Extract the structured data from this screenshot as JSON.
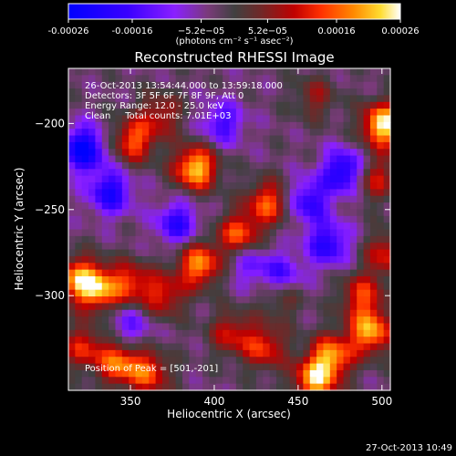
{
  "chart_data": {
    "type": "heatmap",
    "title": "Reconstructed RHESSI Image",
    "xlabel": "Heliocentric X (arcsec)",
    "ylabel": "Heliocentric Y (arcsec)",
    "xlim": [
      313,
      505
    ],
    "ylim": [
      -355,
      -168
    ],
    "x_ticks": [
      350,
      400,
      450,
      500
    ],
    "y_ticks": [
      -200,
      -250,
      -300
    ],
    "colorbar": {
      "range": [
        -0.00026,
        0.00026
      ],
      "tick_values": [
        -0.00026,
        -0.00016,
        -5.2e-05,
        5.2e-05,
        0.00016,
        0.00026
      ],
      "tick_labels": [
        "-0.00026",
        "-0.00016",
        "−5.2e−05",
        "5.2e−05",
        "0.00016",
        "0.00026"
      ],
      "unit_label": "(photons cm⁻² s⁻¹ asec⁻²)",
      "colors": [
        "#0000ff",
        "#3a00ff",
        "#8a20ff",
        "#7a3a7a",
        "#404040",
        "#702828",
        "#c00000",
        "#ff3000",
        "#ff8a00",
        "#ffdc30",
        "#ffffff"
      ]
    },
    "annotations": [
      "26-Oct-2013 13:54:44.000 to 13:59:18.000",
      "Detectors: 3F 5F 6F 7F 8F 9F, Att 0",
      "Energy Range: 12.0 - 25.0 keV",
      "Clean     Total counts: 7.01E+03"
    ],
    "peak_label": "Position of Peak = [501,-201]",
    "peak": {
      "x": 501,
      "y": -201
    },
    "hotspots": [
      {
        "x": 389,
        "y": -226,
        "v": 1.0
      },
      {
        "x": 391,
        "y": -282,
        "v": 0.85
      },
      {
        "x": 415,
        "y": -265,
        "v": 0.75
      },
      {
        "x": 432,
        "y": -246,
        "v": 0.7
      },
      {
        "x": 352,
        "y": -210,
        "v": 0.7
      },
      {
        "x": 501,
        "y": -201,
        "v": 1.1
      },
      {
        "x": 495,
        "y": -232,
        "v": 0.55
      },
      {
        "x": 330,
        "y": -296,
        "v": 0.85
      },
      {
        "x": 350,
        "y": -293,
        "v": 0.6
      },
      {
        "x": 370,
        "y": -300,
        "v": 0.55
      },
      {
        "x": 318,
        "y": -290,
        "v": 0.7
      },
      {
        "x": 343,
        "y": -339,
        "v": 0.75
      },
      {
        "x": 361,
        "y": -345,
        "v": 0.65
      },
      {
        "x": 322,
        "y": -330,
        "v": 0.55
      },
      {
        "x": 470,
        "y": -335,
        "v": 0.8
      },
      {
        "x": 460,
        "y": -349,
        "v": 0.9
      },
      {
        "x": 493,
        "y": -321,
        "v": 0.9
      },
      {
        "x": 488,
        "y": -300,
        "v": 0.6
      },
      {
        "x": 430,
        "y": -330,
        "v": 0.6
      },
      {
        "x": 410,
        "y": -322,
        "v": 0.5
      },
      {
        "x": 503,
        "y": -276,
        "v": 0.55
      },
      {
        "x": 460,
        "y": -185,
        "v": 0.35
      },
      {
        "x": 368,
        "y": -195,
        "v": 0.45
      },
      {
        "x": 440,
        "y": -300,
        "v": 0.4
      }
    ],
    "coldspots": [
      {
        "x": 322,
        "y": -215,
        "v": -0.9
      },
      {
        "x": 338,
        "y": -240,
        "v": -0.7
      },
      {
        "x": 378,
        "y": -258,
        "v": -0.6
      },
      {
        "x": 456,
        "y": -245,
        "v": -0.6
      },
      {
        "x": 478,
        "y": -228,
        "v": -0.8
      },
      {
        "x": 440,
        "y": -289,
        "v": -0.55
      },
      {
        "x": 468,
        "y": -270,
        "v": -0.65
      },
      {
        "x": 420,
        "y": -280,
        "v": -0.4
      },
      {
        "x": 405,
        "y": -200,
        "v": -0.5
      },
      {
        "x": 350,
        "y": -318,
        "v": -0.4
      }
    ]
  },
  "footer": {
    "timestamp": "27-Oct-2013 10:49"
  }
}
